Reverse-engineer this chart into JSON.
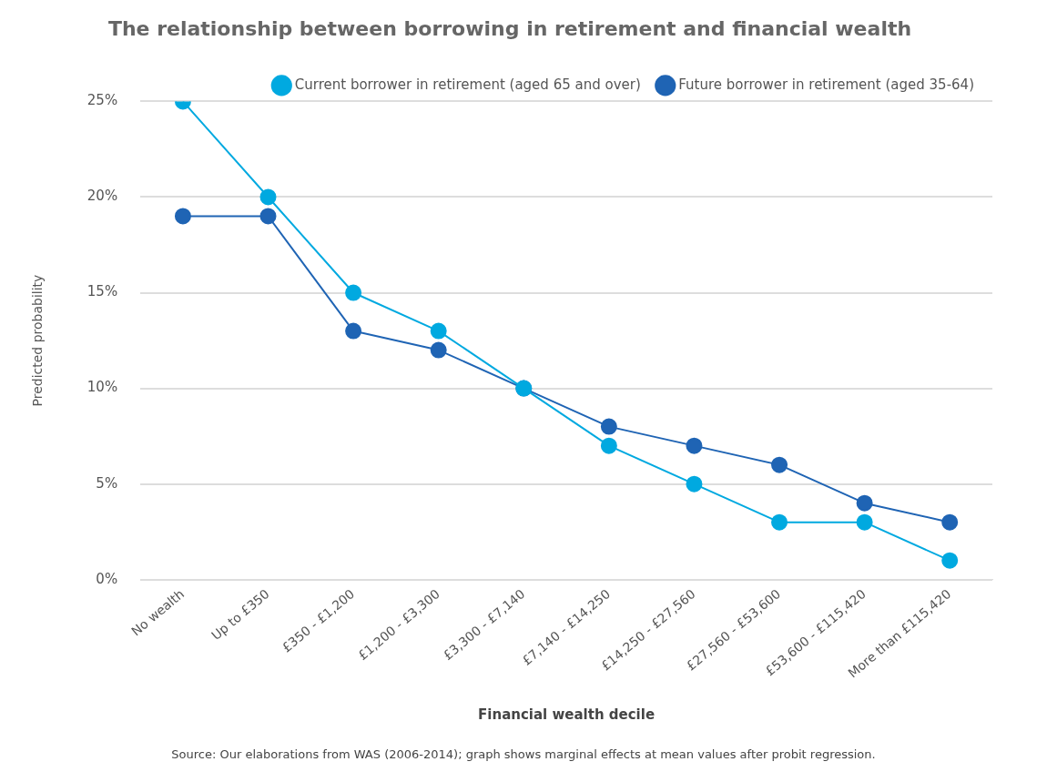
{
  "chart_data": {
    "type": "line",
    "title": "The relationship between borrowing in retirement and financial wealth",
    "xlabel": "Financial wealth decile",
    "ylabel": "Predicted probability",
    "categories": [
      "No wealth",
      "Up to £350",
      "£350 - £1,200",
      "£1,200 - £3,300",
      "£3,300 - £7,140",
      "£7,140 - £14,250",
      "£14,250 - £27,560",
      "£27,560 - £53,600",
      "£53,600 - £115,420",
      "More than £115,420"
    ],
    "series": [
      {
        "name": "Current borrower in retirement (aged 65 and over)",
        "color": "#00a9e0",
        "values": [
          25,
          20,
          15,
          13,
          10,
          7,
          5,
          3,
          3,
          1
        ]
      },
      {
        "name": "Future borrower in retirement (aged 35-64)",
        "color": "#1f64b4",
        "values": [
          19,
          19,
          13,
          12,
          10,
          8,
          7,
          6,
          4,
          3
        ]
      }
    ],
    "ylim": [
      0,
      25
    ],
    "yticks": [
      {
        "value": 0,
        "label": "0%"
      },
      {
        "value": 5,
        "label": "5%"
      },
      {
        "value": 10,
        "label": "10%"
      },
      {
        "value": 15,
        "label": "15%"
      },
      {
        "value": 20,
        "label": "20%"
      },
      {
        "value": 25,
        "label": "25%"
      }
    ],
    "grid": "y",
    "legend": "top right",
    "marker": "circle",
    "line_style": "solid",
    "annotations": [
      "Source: Our elaborations from WAS (2006-2014); graph shows marginal effects at mean values after probit regression."
    ]
  }
}
